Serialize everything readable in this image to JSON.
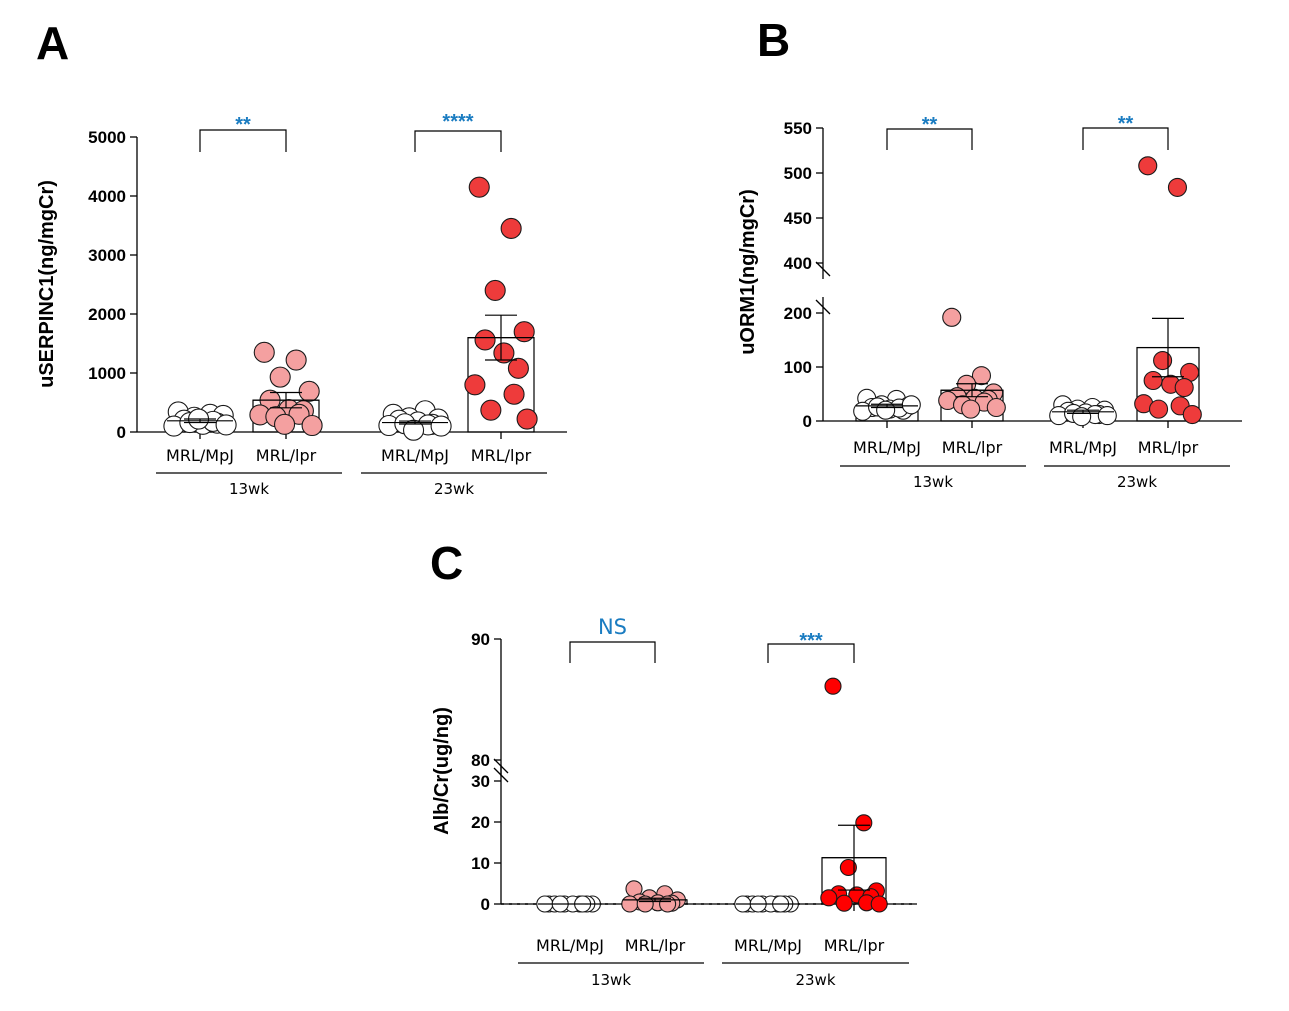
{
  "figure": {
    "panels": [
      "A",
      "B",
      "C"
    ],
    "colors": {
      "control_fill": "#ffffff",
      "lpr_13wk_fill": "#f4a0a0",
      "lpr_23wk_fill_AB": "#ee3b3b",
      "lpr_23wk_fill_C": "#ff0000",
      "significance": "#1a7cc1",
      "axis": "#000000"
    }
  },
  "chart_data": [
    {
      "panel": "A",
      "type": "bar",
      "subtype": "bar-with-scatter",
      "title": "",
      "ylabel": "uSERPINC1(ng/mgCr)",
      "xlabel": "",
      "ylim": [
        0,
        5000
      ],
      "yticks": [
        0,
        1000,
        2000,
        3000,
        4000,
        5000
      ],
      "ytick_labels": [
        "0",
        "1000",
        "2000",
        "3000",
        "4000",
        "5000"
      ],
      "categories": [
        "MRL/MpJ",
        "MRL/lpr",
        "MRL/MpJ",
        "MRL/lpr"
      ],
      "groups": [
        {
          "label": "13wk",
          "categories": [
            0,
            1
          ]
        },
        {
          "label": "23wk",
          "categories": [
            2,
            3
          ]
        }
      ],
      "series": [
        {
          "name": "MRL/MpJ 13wk",
          "mean": 190,
          "sem": 30,
          "fill": "control",
          "points": [
            340,
            300,
            250,
            280,
            200,
            130,
            150,
            100,
            180,
            160,
            120,
            220
          ]
        },
        {
          "name": "MRL/lpr 13wk",
          "mean": 540,
          "sem": 130,
          "fill": "lpr13",
          "points": [
            1350,
            1220,
            930,
            690,
            540,
            380,
            360,
            290,
            300,
            260,
            110,
            130
          ]
        },
        {
          "name": "MRL/MpJ 23wk",
          "mean": 160,
          "sem": 25,
          "fill": "control",
          "points": [
            300,
            360,
            240,
            220,
            200,
            170,
            130,
            110,
            120,
            140,
            100,
            30
          ]
        },
        {
          "name": "MRL/lpr 23wk",
          "mean": 1600,
          "sem": 380,
          "fill": "lpr23",
          "points": [
            4150,
            3450,
            2400,
            1700,
            1560,
            1340,
            1080,
            800,
            640,
            370,
            220
          ]
        }
      ],
      "significance": [
        {
          "between": [
            0,
            1
          ],
          "label": "**"
        },
        {
          "between": [
            2,
            3
          ],
          "label": "****"
        }
      ]
    },
    {
      "panel": "B",
      "type": "bar",
      "subtype": "bar-with-scatter",
      "title": "",
      "ylabel": "uORM1(ng/mgCr)",
      "xlabel": "",
      "ylim": [
        0,
        550
      ],
      "axis_break": [
        200,
        400
      ],
      "yticks": [
        0,
        100,
        200,
        400,
        450,
        500,
        550
      ],
      "ytick_labels": [
        "0",
        "100",
        "200",
        "400",
        "450",
        "500",
        "550"
      ],
      "categories": [
        "MRL/MpJ",
        "MRL/lpr",
        "MRL/MpJ",
        "MRL/lpr"
      ],
      "groups": [
        {
          "label": "13wk",
          "categories": [
            0,
            1
          ]
        },
        {
          "label": "23wk",
          "categories": [
            2,
            3
          ]
        }
      ],
      "series": [
        {
          "name": "MRL/MpJ 13wk",
          "mean": 28,
          "sem": 3,
          "fill": "control",
          "points": [
            42,
            40,
            30,
            28,
            25,
            22,
            20,
            18,
            24,
            26,
            30,
            20
          ]
        },
        {
          "name": "MRL/lpr 13wk",
          "mean": 57,
          "sem": 12,
          "fill": "lpr13",
          "points": [
            192,
            84,
            68,
            52,
            45,
            42,
            40,
            38,
            35,
            30,
            25,
            22
          ]
        },
        {
          "name": "MRL/MpJ 23wk",
          "mean": 17,
          "sem": 3,
          "fill": "control",
          "points": [
            30,
            25,
            22,
            20,
            18,
            15,
            12,
            10,
            12,
            14,
            10,
            8
          ]
        },
        {
          "name": "MRL/lpr 23wk",
          "mean": 136,
          "sem": 54,
          "fill": "lpr23",
          "points": [
            508,
            484,
            112,
            90,
            75,
            68,
            62,
            32,
            28,
            22,
            12
          ]
        }
      ],
      "significance": [
        {
          "between": [
            0,
            1
          ],
          "label": "**"
        },
        {
          "between": [
            2,
            3
          ],
          "label": "**"
        }
      ]
    },
    {
      "panel": "C",
      "type": "bar",
      "subtype": "bar-with-scatter",
      "title": "",
      "ylabel": "Alb/Cr(ug/ng)",
      "xlabel": "",
      "ylim": [
        0,
        90
      ],
      "axis_break": [
        30,
        80
      ],
      "yticks": [
        0,
        10,
        20,
        30,
        80,
        90
      ],
      "ytick_labels": [
        "0",
        "10",
        "20",
        "30",
        "80",
        "90"
      ],
      "reference_line": {
        "y": 0,
        "style": "dotted"
      },
      "categories": [
        "MRL/MpJ",
        "MRL/lpr",
        "MRL/MpJ",
        "MRL/lpr"
      ],
      "groups": [
        {
          "label": "13wk",
          "categories": [
            0,
            1
          ]
        },
        {
          "label": "23wk",
          "categories": [
            2,
            3
          ]
        }
      ],
      "series": [
        {
          "name": "MRL/MpJ 13wk",
          "mean": 0,
          "sem": 0,
          "fill": "control",
          "points": [
            0,
            0,
            0,
            0,
            0,
            0,
            0,
            0,
            0,
            0
          ]
        },
        {
          "name": "MRL/lpr 13wk",
          "mean": 1,
          "sem": 0.4,
          "fill": "lpr13",
          "points": [
            3.7,
            2.5,
            1.5,
            1.0,
            0.5,
            0.3,
            0.2,
            0,
            0,
            0
          ]
        },
        {
          "name": "MRL/MpJ 23wk",
          "mean": 0,
          "sem": 0,
          "fill": "control",
          "points": [
            0,
            0,
            0,
            0,
            0,
            0,
            0,
            0,
            0,
            0
          ]
        },
        {
          "name": "MRL/lpr 23wk",
          "mean": 11.3,
          "sem": 7.9,
          "fill": "lpr23C",
          "points": [
            86.1,
            19.8,
            8.9,
            3.2,
            2.5,
            2.2,
            1.8,
            1.5,
            0.3,
            0.2,
            0
          ]
        }
      ],
      "significance": [
        {
          "between": [
            0,
            1
          ],
          "label": "NS"
        },
        {
          "between": [
            2,
            3
          ],
          "label": "***"
        }
      ]
    }
  ]
}
